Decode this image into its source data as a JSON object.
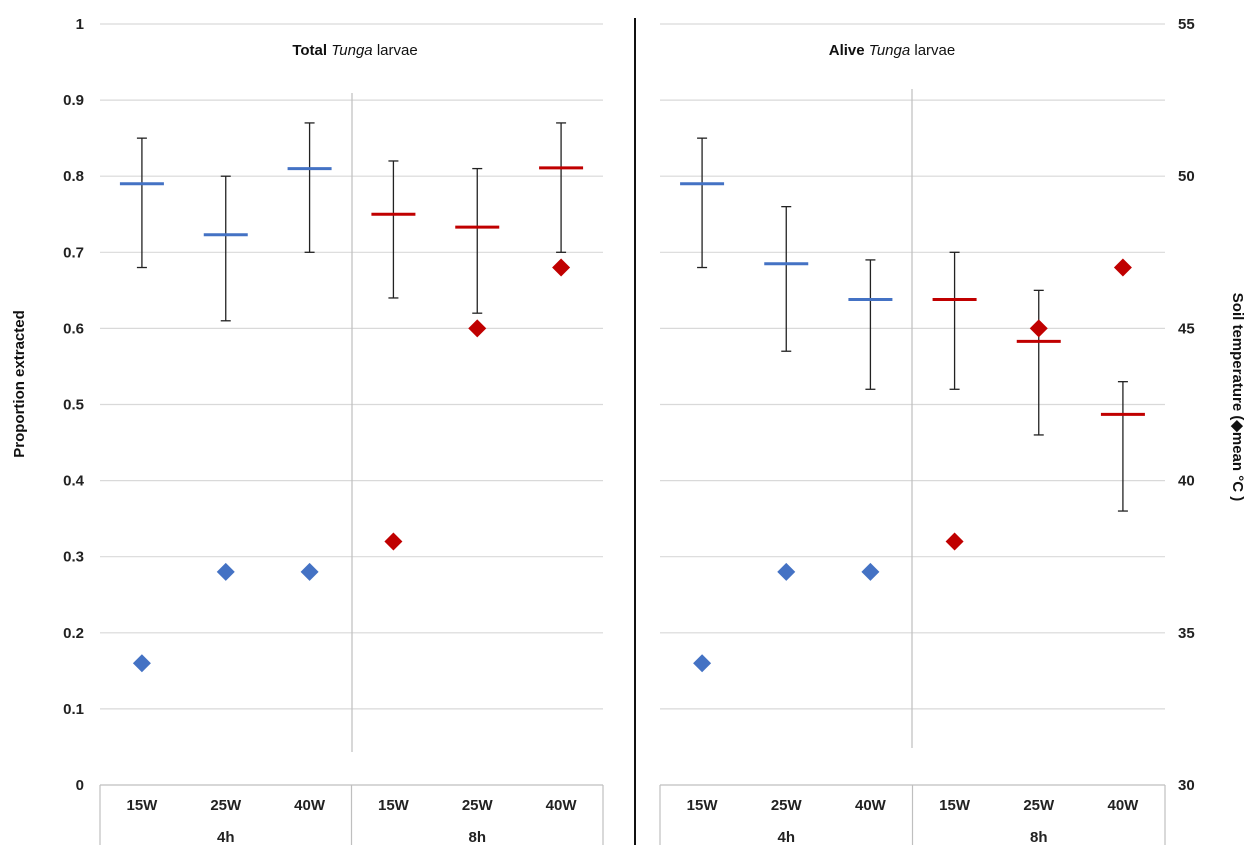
{
  "chart_data": {
    "type": "scatter",
    "y_left_label": "Proportion extracted",
    "y_left_lim": [
      0,
      1
    ],
    "y_left_ticks": [
      "0",
      "0.1",
      "0.2",
      "0.3",
      "0.4",
      "0.5",
      "0.6",
      "0.7",
      "0.8",
      "0.9",
      "1"
    ],
    "y_right_label": "Soil temperature (◆mean °C )",
    "y_right_lim": [
      30,
      55
    ],
    "y_right_ticks": [
      "30",
      "35",
      "40",
      "45",
      "50",
      "55"
    ],
    "categories": [
      "15W",
      "25W",
      "40W",
      "15W",
      "25W",
      "40W"
    ],
    "groups": [
      {
        "label": "4h",
        "span": [
          0,
          2
        ]
      },
      {
        "label": "8h",
        "span": [
          3,
          5
        ]
      }
    ],
    "colors": {
      "4h": "#4472C4",
      "8h": "#C00000",
      "error_bar": "#222222",
      "grid": "#d9d9d9"
    },
    "grid": true,
    "panels": [
      {
        "title_bold": "Total",
        "title_italic": "Tunga",
        "title_rest": "larvae",
        "proportion": [
          0.79,
          0.723,
          0.81,
          0.75,
          0.733,
          0.811
        ],
        "error_low": [
          0.68,
          0.61,
          0.7,
          0.64,
          0.62,
          0.7
        ],
        "error_high": [
          0.85,
          0.8,
          0.87,
          0.82,
          0.81,
          0.87
        ],
        "soil_temp_mean": [
          34,
          37,
          37,
          38,
          45,
          47
        ]
      },
      {
        "title_bold": "Alive",
        "title_italic": "Tunga",
        "title_rest": "larvae",
        "proportion": [
          0.79,
          0.685,
          0.638,
          0.638,
          0.583,
          0.487
        ],
        "error_low": [
          0.68,
          0.57,
          0.52,
          0.52,
          0.46,
          0.36
        ],
        "error_high": [
          0.85,
          0.76,
          0.69,
          0.7,
          0.65,
          0.53
        ],
        "soil_temp_mean": [
          34,
          37,
          37,
          38,
          45,
          47
        ]
      }
    ]
  }
}
